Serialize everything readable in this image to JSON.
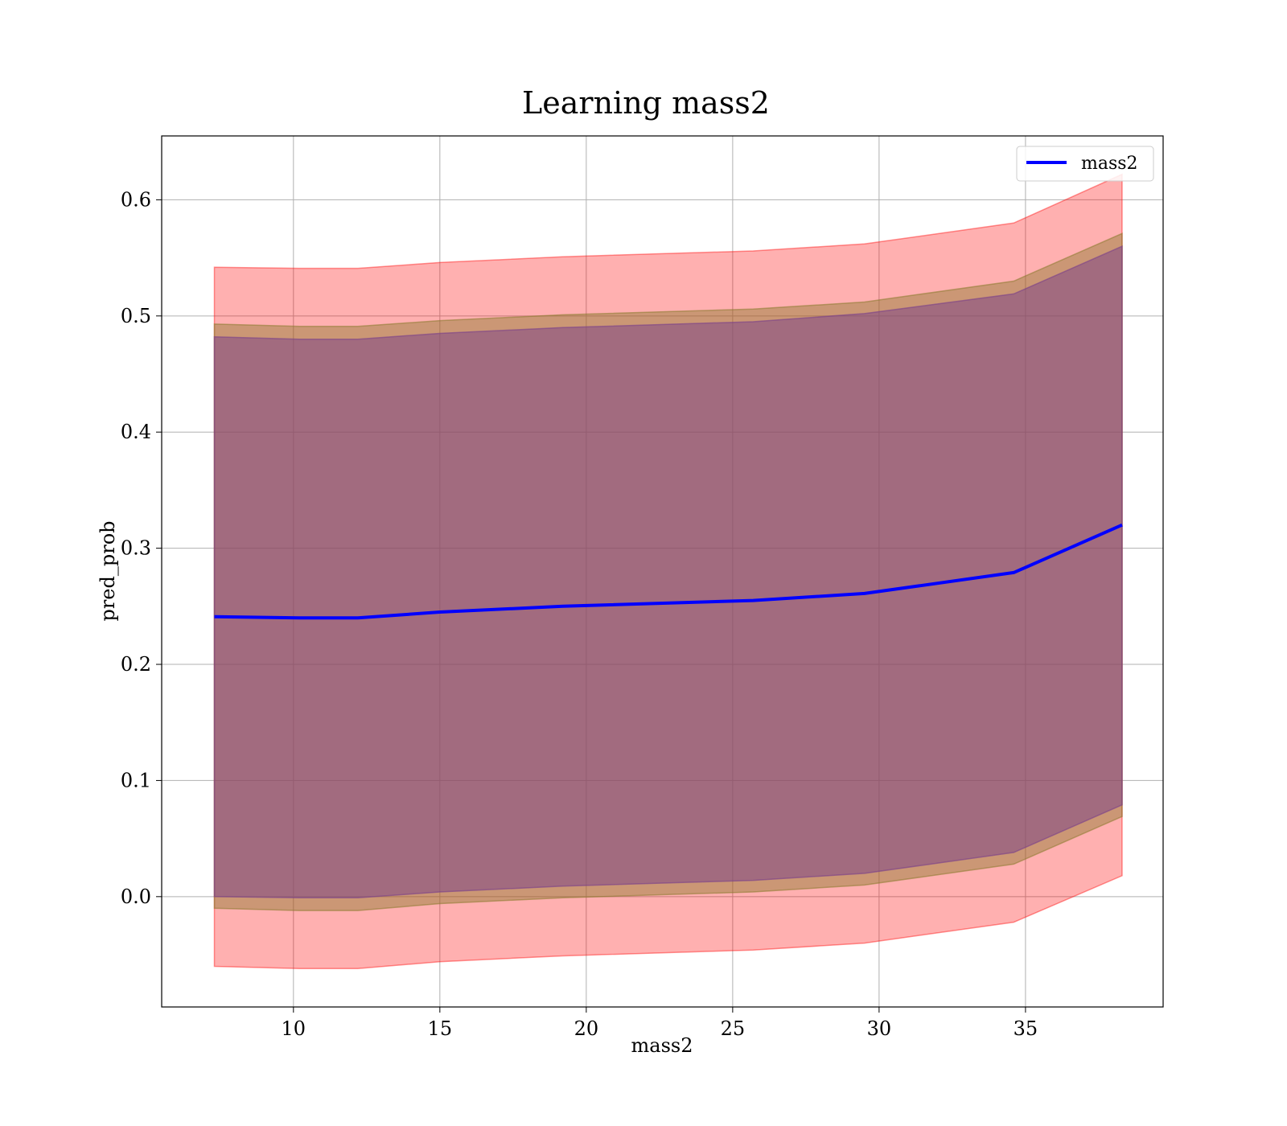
{
  "chart_data": {
    "type": "line",
    "title": "Learning mass2",
    "xlabel": "mass2",
    "ylabel": "pred_prob",
    "xlim": [
      5.5,
      39.7
    ],
    "ylim": [
      -0.095,
      0.655
    ],
    "x_ticks": [
      10,
      15,
      20,
      25,
      30,
      35
    ],
    "y_ticks": [
      0.0,
      0.1,
      0.2,
      0.3,
      0.4,
      0.5,
      0.6
    ],
    "grid": true,
    "legend_position": "top-right",
    "x": [
      7.3,
      10.2,
      12.2,
      15.0,
      19.2,
      25.7,
      29.5,
      34.6,
      38.3
    ],
    "series": [
      {
        "name": "mass2",
        "color": "#0000ff",
        "values": [
          0.241,
          0.24,
          0.24,
          0.245,
          0.25,
          0.255,
          0.261,
          0.279,
          0.32
        ]
      }
    ],
    "bands": [
      {
        "role": "outer",
        "color": "#ff0000",
        "opacity": 0.31,
        "upper": [
          0.542,
          0.541,
          0.541,
          0.546,
          0.551,
          0.556,
          0.562,
          0.58,
          0.622
        ],
        "lower": [
          -0.06,
          -0.062,
          -0.062,
          -0.056,
          -0.051,
          -0.046,
          -0.04,
          -0.022,
          0.018
        ]
      },
      {
        "role": "middle",
        "color": "#8b7a2e",
        "opacity": 0.45,
        "upper": [
          0.493,
          0.491,
          0.491,
          0.496,
          0.501,
          0.506,
          0.512,
          0.53,
          0.571
        ],
        "lower": [
          -0.01,
          -0.012,
          -0.012,
          -0.006,
          -0.001,
          0.004,
          0.01,
          0.028,
          0.069
        ]
      },
      {
        "role": "inner",
        "color": "#7a3f8a",
        "opacity": 0.5,
        "upper": [
          0.482,
          0.48,
          0.48,
          0.485,
          0.49,
          0.495,
          0.502,
          0.519,
          0.56
        ],
        "lower": [
          0.0,
          -0.001,
          -0.001,
          0.004,
          0.009,
          0.014,
          0.02,
          0.038,
          0.079
        ]
      }
    ]
  }
}
